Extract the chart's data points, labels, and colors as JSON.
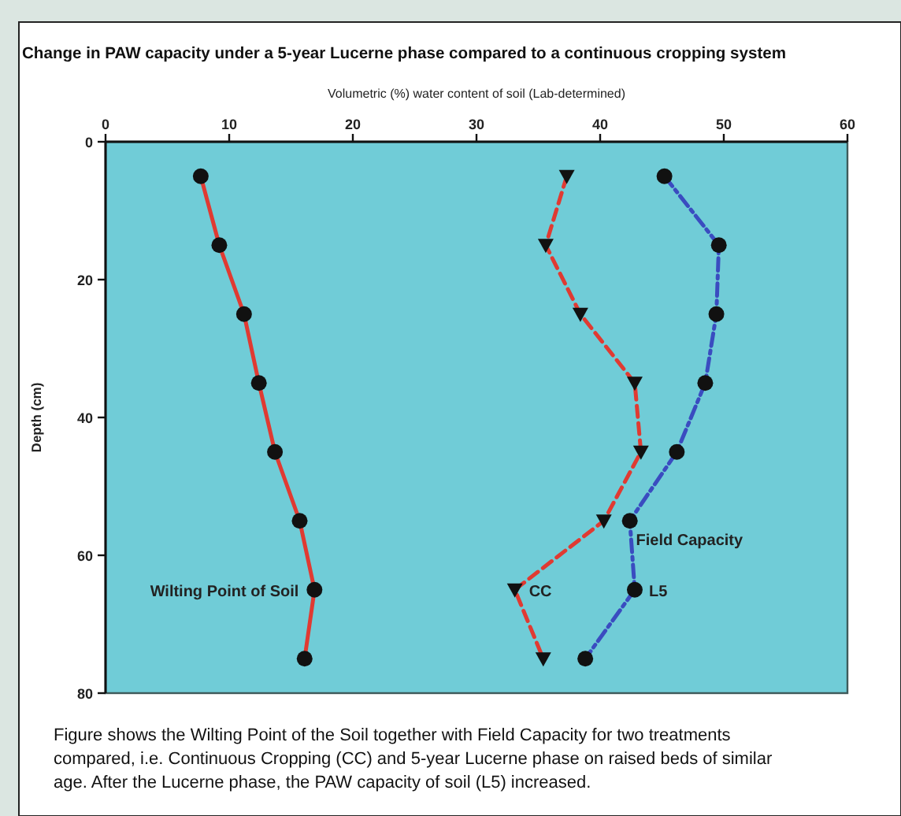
{
  "chart_data": {
    "type": "line",
    "title": "Change in PAW capacity under a 5-year Lucerne phase compared to a continuous cropping system",
    "xlabel": "Volumetric (%) water content of soil (Lab-determined)",
    "ylabel": "Depth (cm)",
    "xlim": [
      0,
      60
    ],
    "xticks": [
      0,
      10,
      20,
      30,
      40,
      50,
      60
    ],
    "ylim": [
      80,
      0
    ],
    "yticks": [
      0,
      20,
      40,
      60,
      80
    ],
    "grid": false,
    "series": [
      {
        "name": "Wilting Point of Soil",
        "color": "#e03a32",
        "marker": "circle",
        "line_style": "solid",
        "x": [
          7.7,
          9.2,
          11.2,
          12.4,
          13.7,
          15.7,
          16.9,
          16.1
        ],
        "values": [
          5,
          15,
          25,
          35,
          45,
          55,
          65,
          75
        ]
      },
      {
        "name": "CC",
        "color": "#e03a32",
        "marker": "triangle",
        "line_style": "dashed",
        "x": [
          37.3,
          35.6,
          38.4,
          42.8,
          43.3,
          40.3,
          33.1,
          35.4
        ],
        "values": [
          5,
          15,
          25,
          35,
          45,
          55,
          65,
          75
        ]
      },
      {
        "name": "L5",
        "color": "#3a4cc0",
        "marker": "circle",
        "line_style": "dashdot",
        "x": [
          45.2,
          49.6,
          49.4,
          48.5,
          46.2,
          42.4,
          42.8,
          38.8
        ],
        "values": [
          5,
          15,
          25,
          35,
          45,
          55,
          65,
          75
        ]
      }
    ],
    "annotations": [
      "Field Capacity",
      "Figure shows the Wilting Point of the Soil together with Field Capacity for two treatments compared, i.e. Continuous Cropping (CC) and 5-year Lucerne phase on raised beds of similar age.  After the Lucerne phase, the PAW capacity of soil (L5) increased."
    ]
  }
}
